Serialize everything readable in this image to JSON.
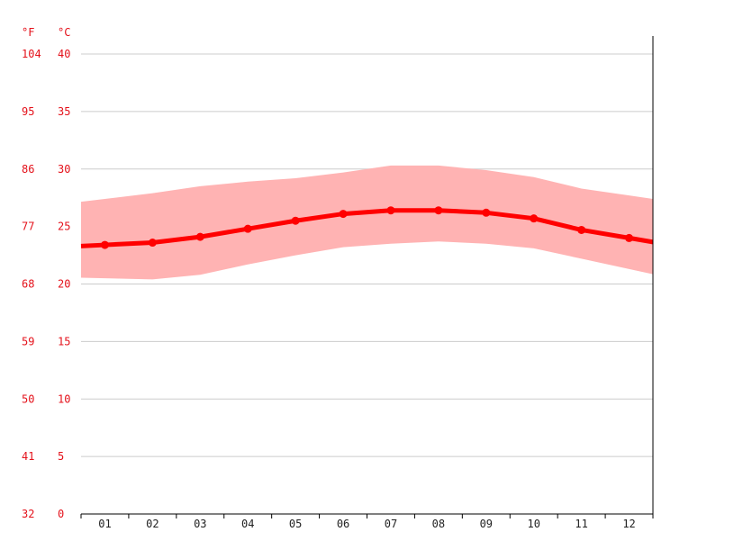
{
  "chart_data": {
    "type": "line",
    "categories": [
      "01",
      "02",
      "03",
      "04",
      "05",
      "06",
      "07",
      "08",
      "09",
      "10",
      "11",
      "12"
    ],
    "series": [
      {
        "values": [
          23.4,
          23.6,
          24.1,
          24.8,
          25.5,
          26.1,
          26.4,
          26.4,
          26.2,
          25.7,
          24.7,
          24.0
        ],
        "color": "#ff0000",
        "style": "line-with-markers"
      }
    ],
    "band": {
      "color": "#ffb3b3",
      "upper": [
        27.4,
        27.9,
        28.5,
        28.9,
        29.2,
        29.7,
        30.3,
        30.3,
        29.9,
        29.3,
        28.3,
        27.7
      ],
      "lower": [
        20.5,
        20.4,
        20.8,
        21.7,
        22.5,
        23.2,
        23.5,
        23.7,
        23.5,
        23.1,
        22.2,
        21.3
      ]
    },
    "y_celsius": {
      "unit": "°C",
      "ticks": [
        "0",
        "5",
        "10",
        "15",
        "20",
        "25",
        "30",
        "35",
        "40"
      ],
      "ylim": [
        0,
        40
      ]
    },
    "y_fahrenheit": {
      "unit": "°F",
      "ticks": [
        "32",
        "41",
        "50",
        "59",
        "68",
        "77",
        "86",
        "95",
        "104"
      ]
    },
    "grid": true,
    "tick_color": "#e4121b",
    "grid_color": "#cccccc"
  }
}
